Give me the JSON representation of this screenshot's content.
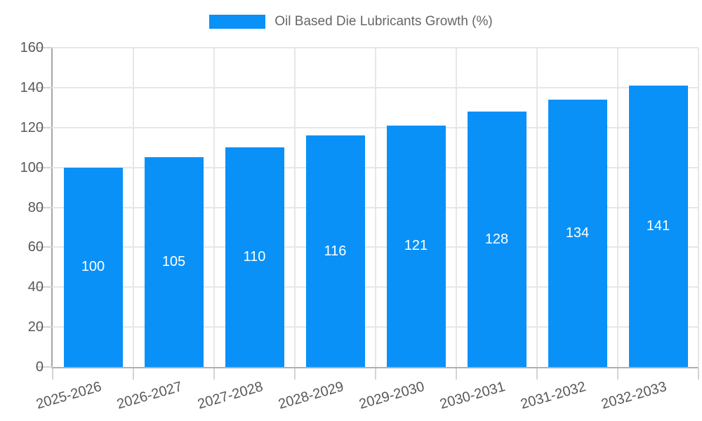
{
  "chart_data": {
    "type": "bar",
    "title": "Oil Based Die Lubricants Growth (%)",
    "categories": [
      "2025-2026",
      "2026-2027",
      "2027-2028",
      "2028-2029",
      "2029-2030",
      "2030-2031",
      "2031-2032",
      "2032-2033"
    ],
    "values": [
      100,
      105,
      110,
      116,
      121,
      128,
      134,
      141
    ],
    "xlabel": "",
    "ylabel": "",
    "ylim": [
      0,
      160
    ],
    "ytick_step": 20,
    "yticks": [
      0,
      20,
      40,
      60,
      80,
      100,
      120,
      140,
      160
    ],
    "grid": true,
    "legend_position": "top",
    "value_labels": "inside-center"
  },
  "colors": {
    "bar": "#0991f8",
    "bar_value_text": "#ffffff",
    "gridline": "#e7e7e7",
    "tick_mark": "#d4d4d4",
    "axis_text": "#58585a",
    "legend_text": "#666666",
    "background": "#ffffff"
  }
}
